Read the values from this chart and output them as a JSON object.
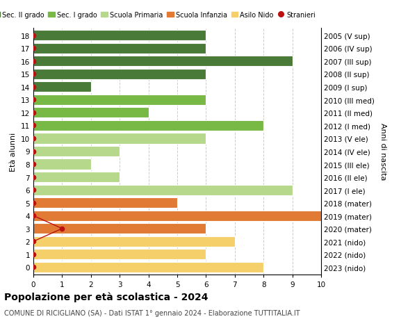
{
  "ages": [
    18,
    17,
    16,
    15,
    14,
    13,
    12,
    11,
    10,
    9,
    8,
    7,
    6,
    5,
    4,
    3,
    2,
    1,
    0
  ],
  "right_labels": [
    "2005 (V sup)",
    "2006 (IV sup)",
    "2007 (III sup)",
    "2008 (II sup)",
    "2009 (I sup)",
    "2010 (III med)",
    "2011 (II med)",
    "2012 (I med)",
    "2013 (V ele)",
    "2014 (IV ele)",
    "2015 (III ele)",
    "2016 (II ele)",
    "2017 (I ele)",
    "2018 (mater)",
    "2019 (mater)",
    "2020 (mater)",
    "2021 (nido)",
    "2022 (nido)",
    "2023 (nido)"
  ],
  "values": [
    6,
    6,
    9,
    6,
    2,
    6,
    4,
    8,
    6,
    3,
    2,
    3,
    9,
    5,
    10,
    6,
    7,
    6,
    8
  ],
  "bar_colors": [
    "#4a7a38",
    "#4a7a38",
    "#4a7a38",
    "#4a7a38",
    "#4a7a38",
    "#78b844",
    "#78b844",
    "#78b844",
    "#b5d88a",
    "#b5d88a",
    "#b5d88a",
    "#b5d88a",
    "#b5d88a",
    "#e07a35",
    "#e07a35",
    "#e07a35",
    "#f5d06a",
    "#f5d06a",
    "#f5d06a"
  ],
  "stranieri_dot_age": 3,
  "stranieri_dot_val": 1,
  "stranieri_line_ages": [
    4,
    3,
    2
  ],
  "stranieri_line_vals": [
    0,
    1,
    0
  ],
  "legend_labels": [
    "Sec. II grado",
    "Sec. I grado",
    "Scuola Primaria",
    "Scuola Infanzia",
    "Asilo Nido",
    "Stranieri"
  ],
  "legend_colors": [
    "#4a7a38",
    "#78b844",
    "#b5d88a",
    "#e07a35",
    "#f5d06a",
    "#bb1111"
  ],
  "title": "Popolazione per età scolastica - 2024",
  "subtitle": "COMUNE DI RICIGLIANO (SA) - Dati ISTAT 1° gennaio 2024 - Elaborazione TUTTITALIA.IT",
  "ylabel_left": "Età alunni",
  "ylabel_right": "Anni di nascita",
  "xlim": [
    0,
    10
  ],
  "background_color": "#ffffff",
  "grid_color": "#cccccc",
  "bar_edge_color": "#ffffff",
  "stranieri_color": "#bb1111",
  "dots_on_left_ages": [
    18,
    17,
    16,
    15,
    14,
    13,
    12,
    11,
    10,
    9,
    8,
    7,
    6,
    5,
    4,
    2,
    1,
    0
  ]
}
